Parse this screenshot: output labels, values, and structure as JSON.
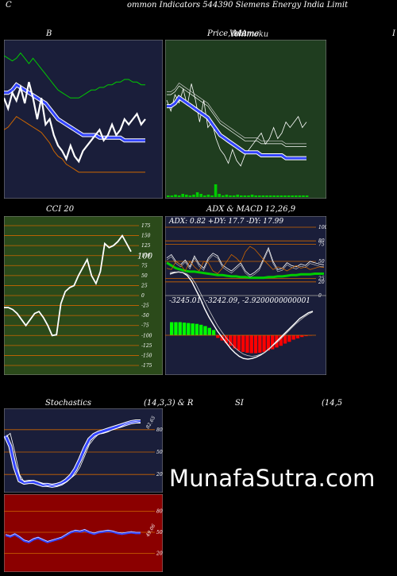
{
  "header": {
    "left_letter": "C",
    "title": "ommon  Indicators 544390  Siemens Energy India  Limit"
  },
  "panels": {
    "bollinger": {
      "title": "B"
    },
    "price": {
      "title_main": "Price,  MA",
      "title_overlay1": "Volume",
      "title_overlay2": "Ichimoku",
      "right_letter": "I"
    },
    "cci": {
      "title": "CCI 20",
      "current_label": "100",
      "ticks": [
        "175",
        "150",
        "125",
        "100",
        "75",
        "50",
        "25",
        "0",
        "-25",
        "-50",
        "-75",
        "-100",
        "-125",
        "-150",
        "-175"
      ]
    },
    "adx": {
      "title": "ADX  & MACD 12,26,9",
      "readout": "ADX: 0.82  +DY: 17.7 -DY: 17.99",
      "ticks": [
        "100",
        "80",
        "75",
        "50",
        "25",
        "20",
        "0"
      ]
    },
    "macd": {
      "readout": "-3245.01,  -3242.09,  -2.9200000000001"
    },
    "stoch": {
      "title_left": "Stochastics",
      "title_right": "(14,3,3) & R",
      "value_label": "82.65",
      "ticks": [
        "80",
        "50",
        "20"
      ]
    },
    "rsi": {
      "title": "SI",
      "title_right": "(14,5",
      "value_label": "49.06",
      "ticks": [
        "80",
        "50",
        "20"
      ]
    }
  },
  "watermark": "MunafaSutra.com",
  "colors": {
    "navy_bg": "#1a1e3a",
    "green_bg": "#1f3d1f",
    "cci_bg": "#2b4a1a",
    "rsi_bg": "#8b0000",
    "orange": "#cc6600",
    "blue": "#3344ff",
    "green_line": "#00cc00",
    "macd_hist_green": "#00ff00",
    "macd_hist_red": "#ff0000"
  },
  "chart_data": [
    {
      "type": "line",
      "panel": "bollinger",
      "x": [
        0,
        1,
        2,
        3,
        4,
        5,
        6,
        7,
        8,
        9,
        10,
        11,
        12,
        13,
        14,
        15,
        16,
        17,
        18,
        19,
        20,
        21,
        22,
        23,
        24,
        25,
        26,
        27,
        28,
        29,
        30,
        31,
        32,
        33,
        34
      ],
      "series": [
        {
          "values": [
            54,
            53,
            52,
            53,
            55,
            53,
            51,
            53,
            51,
            49,
            47,
            45,
            43,
            41,
            40,
            39,
            38,
            38,
            38,
            39,
            40,
            41,
            41,
            42,
            42,
            43,
            43,
            44,
            44,
            45,
            45,
            44,
            44,
            43,
            43
          ]
        },
        {
          "values": [
            40,
            40,
            41,
            43,
            42,
            41,
            40,
            39,
            38,
            37,
            36,
            34,
            32,
            30,
            29,
            28,
            27,
            26,
            25,
            24,
            24,
            24,
            24,
            23,
            23,
            23,
            23,
            23,
            23,
            22,
            22,
            22,
            22,
            22,
            22
          ]
        },
        {
          "values": [
            26,
            27,
            29,
            31,
            30,
            29,
            28,
            27,
            26,
            25,
            23,
            21,
            18,
            16,
            15,
            13,
            12,
            11,
            10,
            10,
            10,
            10,
            10,
            10,
            10,
            10,
            10,
            10,
            10,
            10,
            10,
            10,
            10,
            10,
            10
          ]
        },
        {
          "values": [
            38,
            34,
            40,
            37,
            42,
            36,
            44,
            38,
            30,
            38,
            28,
            30,
            24,
            20,
            18,
            15,
            20,
            16,
            14,
            18,
            20,
            22,
            24,
            26,
            22,
            24,
            28,
            24,
            26,
            30,
            28,
            30,
            32,
            28,
            30
          ]
        }
      ]
    },
    {
      "type": "line",
      "panel": "cci",
      "x": [
        0,
        1,
        2,
        3,
        4,
        5,
        6,
        7,
        8,
        9,
        10,
        11,
        12,
        13,
        14,
        15,
        16,
        17,
        18,
        19,
        20,
        21,
        22,
        23,
        24,
        25,
        26,
        27,
        28,
        29
      ],
      "series": [
        {
          "values": [
            -30,
            -30,
            -35,
            -45,
            -60,
            -75,
            -60,
            -45,
            -40,
            -55,
            -75,
            -100,
            -98,
            -20,
            10,
            20,
            25,
            50,
            70,
            90,
            50,
            30,
            60,
            130,
            120,
            125,
            135,
            150,
            130,
            110
          ]
        }
      ],
      "ylim": [
        -175,
        175
      ]
    },
    {
      "type": "bar",
      "panel": "macd_histogram",
      "values": [
        30,
        30,
        30,
        29,
        28,
        27,
        26,
        24,
        21,
        17,
        12,
        -6,
        -12,
        -18,
        -24,
        -30,
        -35,
        -38,
        -40,
        -41,
        -41,
        -40,
        -38,
        -35,
        -32,
        -28,
        -24,
        -19,
        -15,
        -10,
        -7,
        -4,
        -2,
        -1
      ]
    },
    {
      "type": "line",
      "panel": "stochastics",
      "x": [
        0,
        1,
        2,
        3,
        4,
        5,
        6,
        7,
        8,
        9,
        10,
        11,
        12,
        13,
        14,
        15,
        16,
        17,
        18,
        19,
        20,
        21,
        22,
        23,
        24,
        25,
        26,
        27,
        28,
        29
      ],
      "series": [
        {
          "values": [
            70,
            75,
            50,
            20,
            10,
            11,
            12,
            10,
            7,
            5,
            6,
            5,
            7,
            10,
            15,
            20,
            30,
            45,
            60,
            68,
            74,
            75,
            77,
            80,
            82,
            85,
            88,
            90,
            91,
            90
          ]
        },
        {
          "values": [
            72,
            58,
            30,
            12,
            9,
            10,
            10,
            8,
            6,
            6,
            5,
            6,
            8,
            12,
            18,
            27,
            40,
            55,
            67,
            73,
            76,
            78,
            80,
            82,
            84,
            86,
            88,
            90,
            91,
            91
          ]
        }
      ],
      "ylim": [
        0,
        100
      ]
    },
    {
      "type": "line",
      "panel": "rsi",
      "x": [
        0,
        1,
        2,
        3,
        4,
        5,
        6,
        7,
        8,
        9,
        10,
        11,
        12,
        13,
        14,
        15,
        16,
        17,
        18,
        19,
        20,
        21,
        22,
        23,
        24,
        25,
        26,
        27,
        28,
        29
      ],
      "series": [
        {
          "values": [
            46,
            44,
            47,
            43,
            38,
            36,
            40,
            42,
            39,
            36,
            38,
            40,
            42,
            46,
            50,
            52,
            51,
            53,
            50,
            48,
            50,
            51,
            52,
            51,
            49,
            48,
            49,
            50,
            49,
            49
          ]
        }
      ],
      "ylim": [
        0,
        100
      ]
    }
  ]
}
